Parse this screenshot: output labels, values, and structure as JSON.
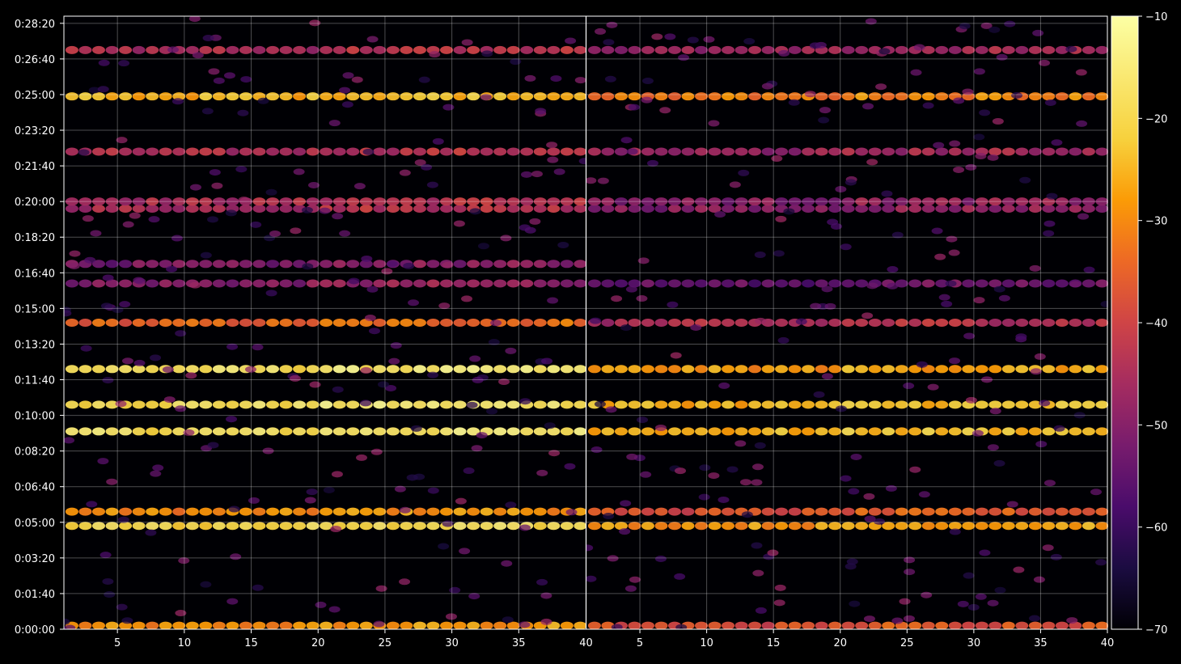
{
  "chart_data": {
    "type": "heatmap",
    "panels": [
      {
        "name": "",
        "xlim": [
          1,
          40
        ],
        "xticks": [
          5,
          10,
          15,
          20,
          25,
          30,
          35
        ],
        "xtick_labels": [
          "5",
          "10",
          "15",
          "20",
          "25",
          "30",
          "35"
        ],
        "ylim_seconds": [
          0,
          1720
        ],
        "bands": [
          {
            "t": "0:00:10",
            "intensity": "high",
            "approx_db": -30
          },
          {
            "t": "0:04:50",
            "intensity": "very_high",
            "approx_db": -20
          },
          {
            "t": "0:05:30",
            "intensity": "high",
            "approx_db": -30
          },
          {
            "t": "0:09:15",
            "intensity": "very_high",
            "approx_db": -18
          },
          {
            "t": "0:10:30",
            "intensity": "very_high",
            "approx_db": -18
          },
          {
            "t": "0:12:10",
            "intensity": "very_high",
            "approx_db": -18
          },
          {
            "t": "0:14:20",
            "intensity": "medium",
            "approx_db": -35
          },
          {
            "t": "0:16:10",
            "intensity": "low",
            "approx_db": -50
          },
          {
            "t": "0:17:05",
            "intensity": "low",
            "approx_db": -52
          },
          {
            "t": "0:19:40",
            "intensity": "low",
            "approx_db": -45
          },
          {
            "t": "0:20:00",
            "intensity": "low",
            "approx_db": -45
          },
          {
            "t": "0:22:20",
            "intensity": "low",
            "approx_db": -45
          },
          {
            "t": "0:24:55",
            "intensity": "high",
            "approx_db": -25
          },
          {
            "t": "0:27:05",
            "intensity": "low",
            "approx_db": -45
          }
        ]
      },
      {
        "name": "",
        "xlim": [
          1,
          40
        ],
        "xticks": [
          5,
          10,
          15,
          20,
          25,
          30,
          35,
          40
        ],
        "xtick_labels": [
          "5",
          "10",
          "15",
          "20",
          "25",
          "30",
          "35",
          "40"
        ],
        "ylim_seconds": [
          0,
          1720
        ],
        "bands": [
          {
            "t": "0:00:10",
            "intensity": "medium",
            "approx_db": -38
          },
          {
            "t": "0:04:50",
            "intensity": "high",
            "approx_db": -28
          },
          {
            "t": "0:05:30",
            "intensity": "medium",
            "approx_db": -38
          },
          {
            "t": "0:09:15",
            "intensity": "high",
            "approx_db": -25
          },
          {
            "t": "0:10:30",
            "intensity": "high",
            "approx_db": -25
          },
          {
            "t": "0:12:10",
            "intensity": "high",
            "approx_db": -28
          },
          {
            "t": "0:14:20",
            "intensity": "medium",
            "approx_db": -45
          },
          {
            "t": "0:16:10",
            "intensity": "low",
            "approx_db": -55
          },
          {
            "t": "0:19:40",
            "intensity": "low",
            "approx_db": -50
          },
          {
            "t": "0:20:00",
            "intensity": "low",
            "approx_db": -50
          },
          {
            "t": "0:22:20",
            "intensity": "low",
            "approx_db": -48
          },
          {
            "t": "0:24:55",
            "intensity": "high",
            "approx_db": -32
          },
          {
            "t": "0:27:05",
            "intensity": "low",
            "approx_db": -48
          }
        ]
      }
    ],
    "shared_x_label_left_edge": "40",
    "yticks": [
      "0:00:00",
      "0:01:40",
      "0:03:20",
      "0:05:00",
      "0:06:40",
      "0:08:20",
      "0:10:00",
      "0:11:40",
      "0:13:20",
      "0:15:00",
      "0:16:40",
      "0:18:20",
      "0:20:00",
      "0:21:40",
      "0:23:20",
      "0:25:00",
      "0:26:40",
      "0:28:20"
    ],
    "grid": true,
    "colorbar": {
      "colormap": "inferno",
      "range": [
        -70,
        -10
      ],
      "ticks": [
        "−70",
        "−60",
        "−50",
        "−40",
        "−30",
        "−20",
        "−10"
      ]
    },
    "title": "",
    "xlabel": "",
    "ylabel": ""
  }
}
